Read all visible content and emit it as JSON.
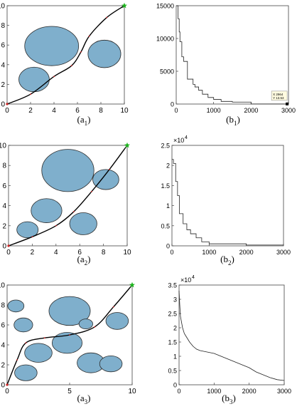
{
  "chart_data": [
    {
      "type": "scatter",
      "caption_main": "(a",
      "caption_sub": "1",
      "caption_close": ")",
      "xlim": [
        0,
        10
      ],
      "ylim": [
        0,
        10
      ],
      "xticks": [
        "0",
        "2",
        "4",
        "6",
        "8",
        "10"
      ],
      "yticks": [
        "0",
        "2",
        "4",
        "6",
        "8",
        "10"
      ],
      "obstacles": [
        {
          "cx": 3.8,
          "cy": 5.9,
          "rx": 2.3,
          "ry": 2.0
        },
        {
          "cx": 8.3,
          "cy": 5.1,
          "rx": 1.4,
          "ry": 1.4
        },
        {
          "cx": 2.3,
          "cy": 2.5,
          "rx": 1.3,
          "ry": 1.25
        }
      ],
      "path": [
        [
          0,
          0
        ],
        [
          2,
          1.0
        ],
        [
          4,
          2.8
        ],
        [
          5.5,
          3.9
        ],
        [
          6.3,
          5.3
        ],
        [
          7.0,
          6.9
        ],
        [
          8.5,
          8.8
        ],
        [
          10,
          10
        ]
      ],
      "start": [
        0,
        0
      ],
      "goal": [
        10,
        10
      ]
    },
    {
      "type": "line",
      "caption_main": "(b",
      "caption_sub": "1",
      "caption_close": ")",
      "xlim": [
        0,
        3000
      ],
      "ylim": [
        0,
        15000
      ],
      "xticks": [
        "0",
        "1000",
        "2000",
        "3000"
      ],
      "yticks": [
        "0",
        "5000",
        "10000",
        "15000"
      ],
      "x": [
        0,
        50,
        50,
        80,
        80,
        100,
        100,
        150,
        150,
        200,
        200,
        300,
        300,
        450,
        450,
        500,
        500,
        600,
        600,
        700,
        700,
        850,
        850,
        1000,
        1000,
        1200,
        1200,
        1500,
        1500,
        2000,
        2000,
        2964
      ],
      "y": [
        15000,
        15000,
        13000,
        13000,
        11000,
        11000,
        9500,
        9500,
        7200,
        7200,
        6500,
        6500,
        3800,
        3800,
        3000,
        3000,
        2600,
        2600,
        2100,
        2100,
        1500,
        1500,
        1000,
        1000,
        700,
        700,
        400,
        400,
        300,
        300,
        13.53,
        13.53
      ],
      "datatip": {
        "x": 2964,
        "y": 13.53,
        "line1": "X 2964",
        "line2": "Y 13.53"
      }
    },
    {
      "type": "scatter",
      "caption_main": "(a",
      "caption_sub": "2",
      "caption_close": ")",
      "xlim": [
        0,
        10
      ],
      "ylim": [
        0,
        10
      ],
      "xticks": [
        "0",
        "2",
        "4",
        "6",
        "8",
        "10"
      ],
      "yticks": [
        "0",
        "2",
        "4",
        "6",
        "8",
        "10"
      ],
      "obstacles": [
        {
          "cx": 5.0,
          "cy": 7.5,
          "rx": 2.2,
          "ry": 2.1
        },
        {
          "cx": 8.2,
          "cy": 6.6,
          "rx": 1.1,
          "ry": 1.0
        },
        {
          "cx": 3.2,
          "cy": 3.5,
          "rx": 1.3,
          "ry": 1.2
        },
        {
          "cx": 6.3,
          "cy": 2.2,
          "rx": 1.15,
          "ry": 1.1
        },
        {
          "cx": 1.6,
          "cy": 1.6,
          "rx": 0.9,
          "ry": 0.8
        }
      ],
      "path": [
        [
          0,
          0
        ],
        [
          2,
          0.9
        ],
        [
          4,
          2.0
        ],
        [
          5.5,
          3.4
        ],
        [
          7,
          5.4
        ],
        [
          8.5,
          7.6
        ],
        [
          10,
          10
        ]
      ],
      "start": [
        0,
        0
      ],
      "goal": [
        10,
        10
      ]
    },
    {
      "type": "line",
      "caption_main": "(b",
      "caption_sub": "2",
      "caption_close": ")",
      "xlim": [
        0,
        3000
      ],
      "ylim": [
        0,
        25000
      ],
      "scale_label": "×10",
      "scale_exp": "4",
      "xticks": [
        "0",
        "1000",
        "2000",
        "3000"
      ],
      "yticks": [
        "0",
        "0.5",
        "1",
        "1.5",
        "2",
        "2.5"
      ],
      "x": [
        0,
        40,
        40,
        100,
        100,
        150,
        150,
        200,
        200,
        300,
        300,
        400,
        400,
        500,
        500,
        650,
        650,
        800,
        800,
        1000,
        1000,
        2000,
        2000,
        3000
      ],
      "y": [
        21500,
        21500,
        20500,
        20500,
        16000,
        16000,
        12500,
        12500,
        8000,
        8000,
        5500,
        5500,
        4000,
        4000,
        3000,
        3000,
        2000,
        2000,
        1000,
        1000,
        500,
        500,
        200,
        200
      ]
    },
    {
      "type": "scatter",
      "caption_main": "(a",
      "caption_sub": "3",
      "caption_close": ")",
      "xlim": [
        0,
        10
      ],
      "ylim": [
        0,
        10
      ],
      "xticks": [
        "0",
        "5",
        "10"
      ],
      "yticks": [
        "0",
        "2",
        "4",
        "6",
        "8",
        "10"
      ],
      "obstacles": [
        {
          "cx": 0.7,
          "cy": 7.9,
          "rx": 0.65,
          "ry": 0.6
        },
        {
          "cx": 1.3,
          "cy": 6.0,
          "rx": 0.75,
          "ry": 0.7
        },
        {
          "cx": 5.0,
          "cy": 7.4,
          "rx": 1.65,
          "ry": 1.45
        },
        {
          "cx": 6.3,
          "cy": 6.1,
          "rx": 0.55,
          "ry": 0.5
        },
        {
          "cx": 8.8,
          "cy": 6.4,
          "rx": 0.9,
          "ry": 0.85
        },
        {
          "cx": 2.5,
          "cy": 3.2,
          "rx": 1.1,
          "ry": 0.95
        },
        {
          "cx": 4.8,
          "cy": 4.2,
          "rx": 1.2,
          "ry": 1.05
        },
        {
          "cx": 6.7,
          "cy": 2.2,
          "rx": 1.1,
          "ry": 1.0
        },
        {
          "cx": 8.3,
          "cy": 2.1,
          "rx": 0.9,
          "ry": 0.8
        },
        {
          "cx": 1.5,
          "cy": 1.2,
          "rx": 0.9,
          "ry": 0.8
        }
      ],
      "path": [
        [
          0,
          0
        ],
        [
          0.8,
          2.5
        ],
        [
          1.5,
          4.2
        ],
        [
          3,
          4.7
        ],
        [
          5,
          5.0
        ],
        [
          7,
          5.8
        ],
        [
          8.5,
          7.8
        ],
        [
          10,
          10
        ]
      ],
      "start": [
        0,
        0
      ],
      "goal": [
        10,
        10
      ]
    },
    {
      "type": "line",
      "caption_main": "(b",
      "caption_sub": "3",
      "caption_close": ")",
      "xlim": [
        0,
        3000
      ],
      "ylim": [
        0,
        35000
      ],
      "scale_label": "×10",
      "scale_exp": "4",
      "xticks": [
        "0",
        "1000",
        "2000",
        "3000"
      ],
      "yticks": [
        "0",
        "0.5",
        "1",
        "1.5",
        "2",
        "2.5",
        "3",
        "3.5"
      ],
      "x": [
        0,
        20,
        40,
        70,
        100,
        150,
        200,
        300,
        400,
        500,
        600,
        800,
        1000,
        1200,
        1400,
        1600,
        1800,
        2000,
        2200,
        2400,
        2600,
        2800,
        3000
      ],
      "y": [
        33000,
        28000,
        24000,
        22000,
        20000,
        18000,
        17000,
        15000,
        13500,
        12500,
        12000,
        11500,
        11000,
        10000,
        9000,
        8000,
        7000,
        6000,
        4500,
        3500,
        2500,
        1800,
        1500
      ]
    }
  ],
  "colors": {
    "obstacle_fill": "#7fafcc",
    "obstacle_stroke": "#2b2b2b",
    "path": "#000000",
    "goal": "#1db31d",
    "start": "#cc2222"
  }
}
